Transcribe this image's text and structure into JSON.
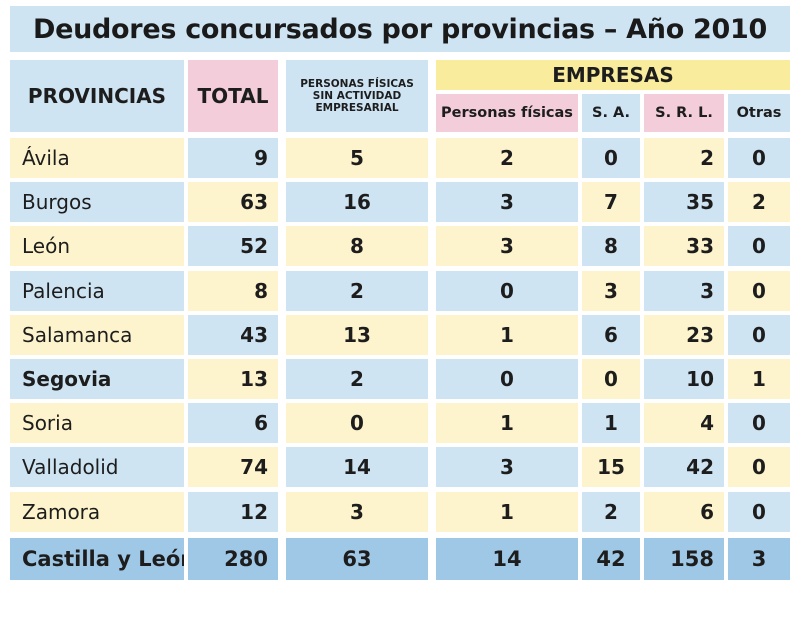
{
  "chart_data": {
    "type": "table",
    "title": "Deudores concursados por provincias – Año 2010",
    "headers": {
      "provincias": "PROVINCIAS",
      "total": "TOTAL",
      "personas_sin_actividad": "PERSONAS FÍSICAS SIN ACTIVIDAD EMPRESARIAL",
      "empresas": "EMPRESAS",
      "empresas_sub": [
        "Personas físicas",
        "S. A.",
        "S. R. L.",
        "Otras"
      ]
    },
    "rows": [
      {
        "provincia": "Ávila",
        "total": "9",
        "pf_sin": "5",
        "pf": "2",
        "sa": "0",
        "srl": "2",
        "otras": "0"
      },
      {
        "provincia": "Burgos",
        "total": "63",
        "pf_sin": "16",
        "pf": "3",
        "sa": "7",
        "srl": "35",
        "otras": "2"
      },
      {
        "provincia": "León",
        "total": "52",
        "pf_sin": "8",
        "pf": "3",
        "sa": "8",
        "srl": "33",
        "otras": "0"
      },
      {
        "provincia": "Palencia",
        "total": "8",
        "pf_sin": "2",
        "pf": "0",
        "sa": "3",
        "srl": "3",
        "otras": "0"
      },
      {
        "provincia": "Salamanca",
        "total": "43",
        "pf_sin": "13",
        "pf": "1",
        "sa": "6",
        "srl": "23",
        "otras": "0"
      },
      {
        "provincia": "Segovia",
        "total": "13",
        "pf_sin": "2",
        "pf": "0",
        "sa": "0",
        "srl": "10",
        "otras": "1"
      },
      {
        "provincia": "Soria",
        "total": "6",
        "pf_sin": "0",
        "pf": "1",
        "sa": "1",
        "srl": "4",
        "otras": "0"
      },
      {
        "provincia": "Valladolid",
        "total": "74",
        "pf_sin": "14",
        "pf": "3",
        "sa": "15",
        "srl": "42",
        "otras": "0"
      },
      {
        "provincia": "Zamora",
        "total": "12",
        "pf_sin": "3",
        "pf": "1",
        "sa": "2",
        "srl": "6",
        "otras": "0"
      }
    ],
    "totals": {
      "provincia": "Castilla y León",
      "total": "280",
      "pf_sin": "63",
      "pf": "14",
      "sa": "42",
      "srl": "158",
      "otras": "3"
    },
    "colors": {
      "yellow_row": "#fdf3cc",
      "blue_row": "#cfe4f3",
      "pink_header": "#f3cdd9",
      "gold_header": "#f9ec9c",
      "total_row": "#9fc8e7"
    }
  }
}
